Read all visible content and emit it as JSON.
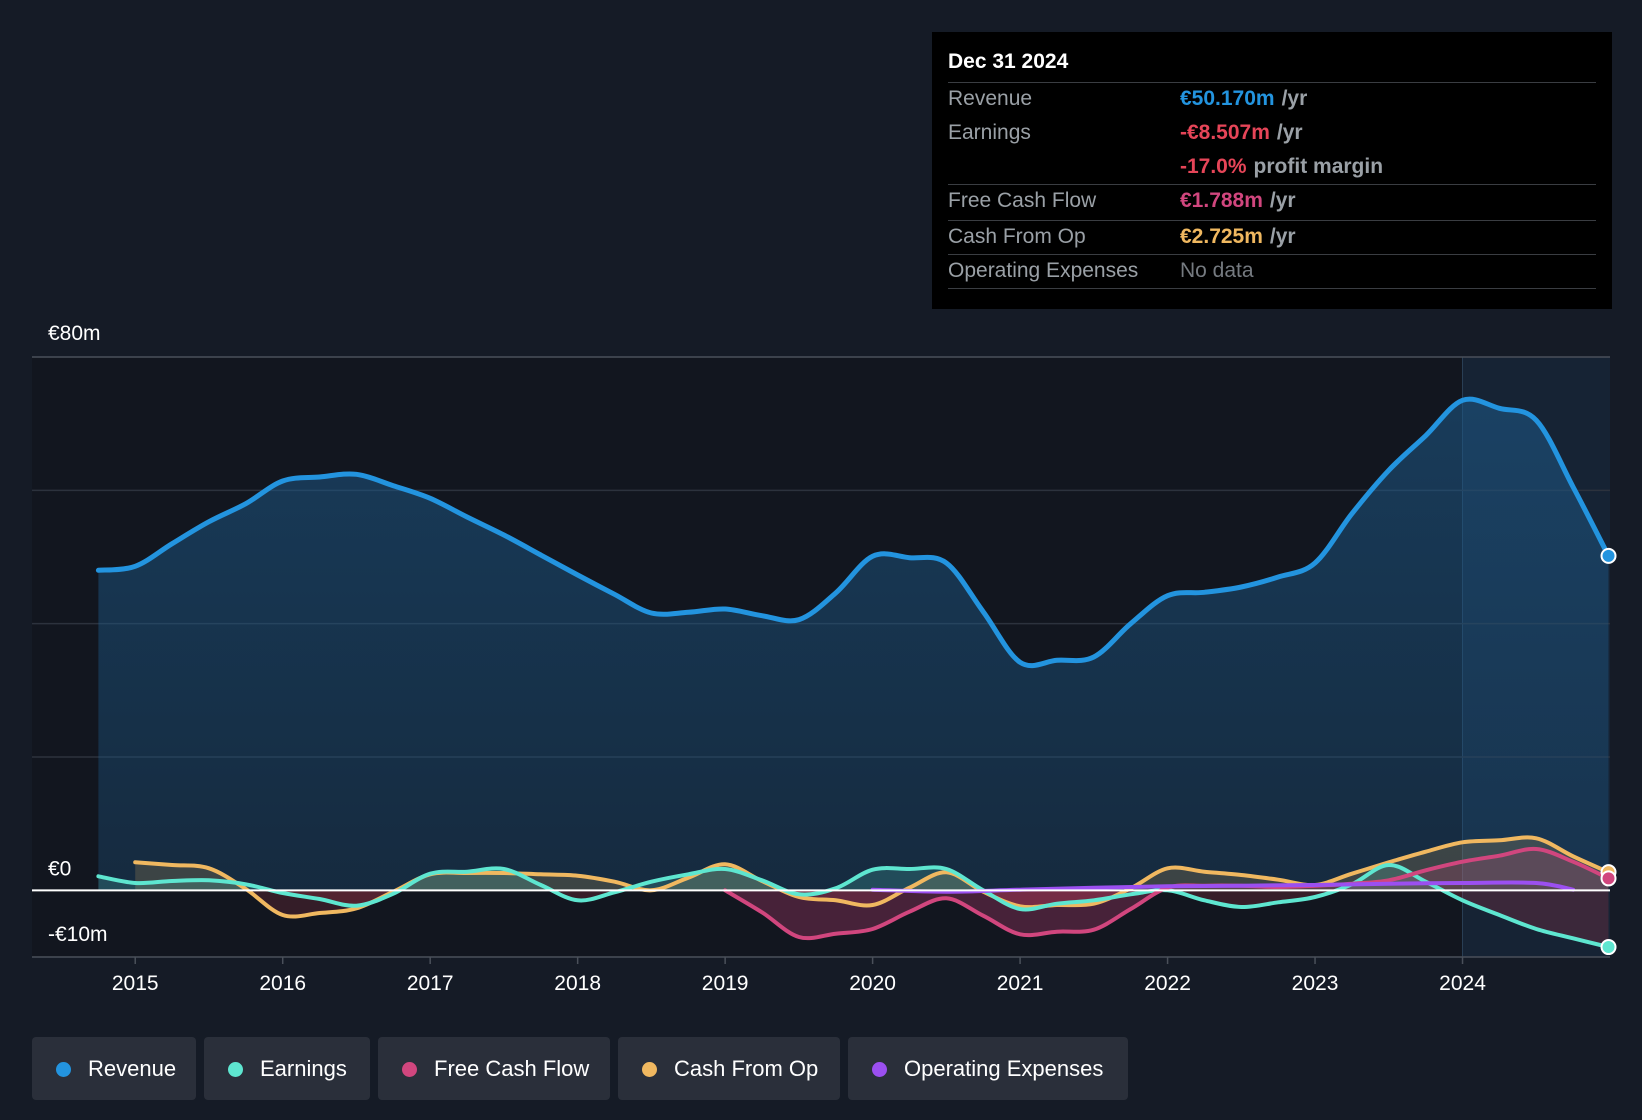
{
  "tooltip": {
    "date": "Dec 31 2024",
    "rows": [
      {
        "label": "Revenue",
        "value": "€50.170m",
        "unit": "/yr",
        "color": "#2394df"
      },
      {
        "label": "Earnings",
        "value": "-€8.507m",
        "unit": "/yr",
        "color": "#e64558"
      },
      {
        "label": "",
        "value": "-17.0%",
        "unit": "profit margin",
        "color": "#e64558"
      },
      {
        "label": "Free Cash Flow",
        "value": "€1.788m",
        "unit": "/yr",
        "color": "#d1467e"
      },
      {
        "label": "Cash From Op",
        "value": "€2.725m",
        "unit": "/yr",
        "color": "#f0b860"
      },
      {
        "label": "Operating Expenses",
        "value": "No data",
        "unit": "",
        "color": "#757a80"
      }
    ]
  },
  "legend": [
    {
      "label": "Revenue",
      "color": "#2394df"
    },
    {
      "label": "Earnings",
      "color": "#5ee6d0"
    },
    {
      "label": "Free Cash Flow",
      "color": "#d1467e"
    },
    {
      "label": "Cash From Op",
      "color": "#f0b860"
    },
    {
      "label": "Operating Expenses",
      "color": "#9b4ff0"
    }
  ],
  "chart_data": {
    "type": "area",
    "title": "",
    "xlabel": "",
    "ylabel": "",
    "ylim": [
      -10,
      80
    ],
    "xlim": [
      2014.3,
      2025.0
    ],
    "y_tick_labels": [
      {
        "value": 80,
        "label": "€80m"
      },
      {
        "value": 0,
        "label": "€0"
      },
      {
        "value": -10,
        "label": "-€10m"
      }
    ],
    "gridlines": [
      80,
      60,
      40,
      20,
      0
    ],
    "x_ticks": [
      2015,
      2016,
      2017,
      2018,
      2019,
      2020,
      2021,
      2022,
      2023,
      2024
    ],
    "x_tick_labels": [
      "2015",
      "2016",
      "2017",
      "2018",
      "2019",
      "2020",
      "2021",
      "2022",
      "2023",
      "2024"
    ],
    "highlight_start": 2024.0,
    "series": [
      {
        "name": "Revenue",
        "color": "#2394df",
        "points": [
          [
            2014.75,
            48
          ],
          [
            2015.0,
            48.6
          ],
          [
            2015.25,
            52
          ],
          [
            2015.5,
            55.3
          ],
          [
            2015.75,
            58
          ],
          [
            2016.0,
            61.4
          ],
          [
            2016.25,
            62
          ],
          [
            2016.5,
            62.4
          ],
          [
            2016.75,
            60.7
          ],
          [
            2017.0,
            58.8
          ],
          [
            2017.25,
            56
          ],
          [
            2017.5,
            53.3
          ],
          [
            2017.75,
            50.3
          ],
          [
            2018.0,
            47.3
          ],
          [
            2018.25,
            44.4
          ],
          [
            2018.5,
            41.6
          ],
          [
            2018.75,
            41.7
          ],
          [
            2019.0,
            42.2
          ],
          [
            2019.25,
            41.2
          ],
          [
            2019.5,
            40.6
          ],
          [
            2019.75,
            44.6
          ],
          [
            2020.0,
            50.1
          ],
          [
            2020.25,
            49.9
          ],
          [
            2020.5,
            49.1
          ],
          [
            2020.75,
            41.8
          ],
          [
            2021.0,
            34.2
          ],
          [
            2021.25,
            34.5
          ],
          [
            2021.5,
            35
          ],
          [
            2021.75,
            40
          ],
          [
            2022.0,
            44.2
          ],
          [
            2022.25,
            44.7
          ],
          [
            2022.5,
            45.5
          ],
          [
            2022.75,
            47
          ],
          [
            2023.0,
            49.1
          ],
          [
            2023.25,
            56.5
          ],
          [
            2023.5,
            63
          ],
          [
            2023.75,
            68.2
          ],
          [
            2024.0,
            73.5
          ],
          [
            2024.25,
            72.3
          ],
          [
            2024.5,
            70.5
          ],
          [
            2024.75,
            60.5
          ],
          [
            2024.99,
            50.17
          ]
        ]
      },
      {
        "name": "Earnings",
        "color": "#5ee6d0",
        "points": [
          [
            2014.75,
            2.1
          ],
          [
            2015.0,
            1.1
          ],
          [
            2015.25,
            1.4
          ],
          [
            2015.5,
            1.5
          ],
          [
            2015.75,
            0.9
          ],
          [
            2016.0,
            -0.4
          ],
          [
            2016.25,
            -1.3
          ],
          [
            2016.5,
            -2.3
          ],
          [
            2016.75,
            -0.5
          ],
          [
            2017.0,
            2.5
          ],
          [
            2017.25,
            2.8
          ],
          [
            2017.5,
            3.2
          ],
          [
            2017.75,
            0.8
          ],
          [
            2018.0,
            -1.5
          ],
          [
            2018.25,
            -0.3
          ],
          [
            2018.5,
            1.3
          ],
          [
            2018.75,
            2.4
          ],
          [
            2019.0,
            3.2
          ],
          [
            2019.25,
            1.5
          ],
          [
            2019.5,
            -0.6
          ],
          [
            2019.75,
            0.3
          ],
          [
            2020.0,
            3.1
          ],
          [
            2020.25,
            3.2
          ],
          [
            2020.5,
            3.2
          ],
          [
            2020.75,
            0
          ],
          [
            2021.0,
            -2.8
          ],
          [
            2021.25,
            -2
          ],
          [
            2021.5,
            -1.5
          ],
          [
            2021.75,
            -0.6
          ],
          [
            2022.0,
            0
          ],
          [
            2022.25,
            -1.5
          ],
          [
            2022.5,
            -2.5
          ],
          [
            2022.75,
            -1.8
          ],
          [
            2023.0,
            -1
          ],
          [
            2023.25,
            0.9
          ],
          [
            2023.5,
            3.8
          ],
          [
            2023.75,
            1.3
          ],
          [
            2024.0,
            -1.5
          ],
          [
            2024.25,
            -3.7
          ],
          [
            2024.5,
            -5.8
          ],
          [
            2024.75,
            -7.2
          ],
          [
            2024.99,
            -8.507
          ]
        ]
      },
      {
        "name": "Free Cash Flow",
        "color": "#d1467e",
        "points": [
          [
            2019.0,
            0
          ],
          [
            2019.25,
            -3.3
          ],
          [
            2019.5,
            -7
          ],
          [
            2019.75,
            -6.5
          ],
          [
            2020.0,
            -5.8
          ],
          [
            2020.25,
            -3.2
          ],
          [
            2020.5,
            -1.2
          ],
          [
            2020.75,
            -3.8
          ],
          [
            2021.0,
            -6.6
          ],
          [
            2021.25,
            -6.2
          ],
          [
            2021.5,
            -5.9
          ],
          [
            2021.75,
            -2.8
          ],
          [
            2022.0,
            0.4
          ],
          [
            2022.25,
            0.7
          ],
          [
            2022.5,
            0.7
          ],
          [
            2022.75,
            0.5
          ],
          [
            2023.0,
            0.7
          ],
          [
            2023.25,
            1
          ],
          [
            2023.5,
            1.5
          ],
          [
            2023.75,
            3
          ],
          [
            2024.0,
            4.3
          ],
          [
            2024.25,
            5.2
          ],
          [
            2024.5,
            6.2
          ],
          [
            2024.75,
            4.3
          ],
          [
            2024.99,
            1.788
          ]
        ]
      },
      {
        "name": "Cash From Op",
        "color": "#f0b860",
        "points": [
          [
            2015.0,
            4.2
          ],
          [
            2015.25,
            3.8
          ],
          [
            2015.5,
            3.3
          ],
          [
            2015.75,
            0.2
          ],
          [
            2016.0,
            -3.7
          ],
          [
            2016.25,
            -3.4
          ],
          [
            2016.5,
            -2.7
          ],
          [
            2016.75,
            -0.2
          ],
          [
            2017.0,
            2.4
          ],
          [
            2017.25,
            2.6
          ],
          [
            2017.5,
            2.6
          ],
          [
            2017.75,
            2.4
          ],
          [
            2018.0,
            2.2
          ],
          [
            2018.25,
            1.3
          ],
          [
            2018.5,
            0
          ],
          [
            2018.75,
            1.9
          ],
          [
            2019.0,
            3.9
          ],
          [
            2019.25,
            1.4
          ],
          [
            2019.5,
            -1
          ],
          [
            2019.75,
            -1.5
          ],
          [
            2020.0,
            -2.2
          ],
          [
            2020.25,
            0.4
          ],
          [
            2020.5,
            2.7
          ],
          [
            2020.75,
            -0.2
          ],
          [
            2021.0,
            -2.4
          ],
          [
            2021.25,
            -2.2
          ],
          [
            2021.5,
            -2
          ],
          [
            2021.75,
            0.3
          ],
          [
            2022.0,
            3.3
          ],
          [
            2022.25,
            2.8
          ],
          [
            2022.5,
            2.3
          ],
          [
            2022.75,
            1.6
          ],
          [
            2023.0,
            0.8
          ],
          [
            2023.25,
            2.5
          ],
          [
            2023.5,
            4.2
          ],
          [
            2023.75,
            5.8
          ],
          [
            2024.0,
            7.2
          ],
          [
            2024.25,
            7.5
          ],
          [
            2024.5,
            7.8
          ],
          [
            2024.75,
            5.1
          ],
          [
            2024.99,
            2.725
          ]
        ]
      },
      {
        "name": "Operating Expenses",
        "color": "#9b4ff0",
        "points": [
          [
            2020.0,
            0.1
          ],
          [
            2020.5,
            -0.2
          ],
          [
            2021.0,
            0.1
          ],
          [
            2021.5,
            0.4
          ],
          [
            2022.0,
            0.6
          ],
          [
            2022.5,
            0.7
          ],
          [
            2023.0,
            0.8
          ],
          [
            2023.5,
            1
          ],
          [
            2024.0,
            1.1
          ],
          [
            2024.5,
            1.1
          ],
          [
            2024.75,
            0.1
          ]
        ]
      }
    ]
  }
}
